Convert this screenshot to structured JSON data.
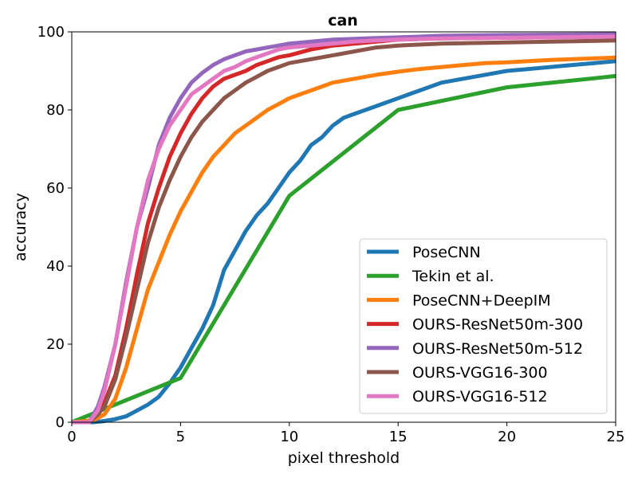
{
  "chart_data": {
    "type": "line",
    "title": "can",
    "xlabel": "pixel threshold",
    "ylabel": "accuracy",
    "xlim": [
      0,
      25
    ],
    "ylim": [
      0,
      100
    ],
    "xticks": [
      "0",
      "5",
      "10",
      "15",
      "20",
      "25"
    ],
    "yticks": [
      "0",
      "20",
      "40",
      "60",
      "80",
      "100"
    ],
    "grid": false,
    "legend_position": "lower-right",
    "series": [
      {
        "name": "PoseCNN",
        "color": "#1f77b4",
        "points": [
          [
            0,
            0
          ],
          [
            1,
            0
          ],
          [
            1.5,
            0.3
          ],
          [
            2,
            0.8
          ],
          [
            2.5,
            1.5
          ],
          [
            3,
            3
          ],
          [
            3.5,
            4.5
          ],
          [
            4,
            6.5
          ],
          [
            4.5,
            10
          ],
          [
            5,
            14
          ],
          [
            5.5,
            19
          ],
          [
            6,
            24
          ],
          [
            6.5,
            30
          ],
          [
            7,
            39
          ],
          [
            7.5,
            44
          ],
          [
            8,
            49
          ],
          [
            8.5,
            53
          ],
          [
            9,
            56
          ],
          [
            9.5,
            60
          ],
          [
            10,
            64
          ],
          [
            10.5,
            67
          ],
          [
            11,
            71
          ],
          [
            11.5,
            73
          ],
          [
            12,
            76
          ],
          [
            12.5,
            78
          ],
          [
            13,
            79
          ],
          [
            13.5,
            80
          ],
          [
            14,
            81
          ],
          [
            14.5,
            82
          ],
          [
            15,
            83
          ],
          [
            15.5,
            84
          ],
          [
            16,
            85
          ],
          [
            17,
            87
          ],
          [
            18,
            88
          ],
          [
            19,
            89
          ],
          [
            20,
            90
          ],
          [
            21,
            90.5
          ],
          [
            22,
            91
          ],
          [
            23,
            91.5
          ],
          [
            24,
            92
          ],
          [
            25,
            92.5
          ]
        ]
      },
      {
        "name": "Tekin et al.",
        "color": "#2ca02c",
        "points": [
          [
            0,
            0
          ],
          [
            5,
            11.3
          ],
          [
            10,
            58
          ],
          [
            15,
            80
          ],
          [
            20,
            85.8
          ],
          [
            25,
            88.7
          ]
        ]
      },
      {
        "name": "PoseCNN+DeepIM",
        "color": "#ff7f0e",
        "points": [
          [
            0,
            0
          ],
          [
            1,
            0.5
          ],
          [
            1.5,
            2
          ],
          [
            2,
            6
          ],
          [
            2.5,
            14
          ],
          [
            3,
            24
          ],
          [
            3.5,
            34
          ],
          [
            4,
            41
          ],
          [
            4.5,
            48
          ],
          [
            5,
            54
          ],
          [
            5.5,
            59
          ],
          [
            6,
            64
          ],
          [
            6.5,
            68
          ],
          [
            7,
            71
          ],
          [
            7.5,
            74
          ],
          [
            8,
            76
          ],
          [
            8.5,
            78
          ],
          [
            9,
            80
          ],
          [
            9.5,
            81.5
          ],
          [
            10,
            83
          ],
          [
            10.5,
            84
          ],
          [
            11,
            85
          ],
          [
            11.5,
            86
          ],
          [
            12,
            87
          ],
          [
            13,
            88
          ],
          [
            14,
            89
          ],
          [
            15,
            89.8
          ],
          [
            16,
            90.5
          ],
          [
            17,
            91
          ],
          [
            18,
            91.5
          ],
          [
            19,
            92
          ],
          [
            20,
            92.2
          ],
          [
            21,
            92.5
          ],
          [
            22,
            92.8
          ],
          [
            23,
            93
          ],
          [
            24,
            93.2
          ],
          [
            25,
            93.4
          ]
        ]
      },
      {
        "name": "OURS-ResNet50m-300",
        "color": "#d62728",
        "points": [
          [
            0,
            0
          ],
          [
            0.8,
            0
          ],
          [
            1.2,
            2
          ],
          [
            1.5,
            5
          ],
          [
            2,
            12
          ],
          [
            2.5,
            24
          ],
          [
            3,
            38
          ],
          [
            3.5,
            51
          ],
          [
            4,
            60
          ],
          [
            4.5,
            68
          ],
          [
            5,
            74
          ],
          [
            5.5,
            79
          ],
          [
            6,
            83
          ],
          [
            6.5,
            86
          ],
          [
            7,
            88
          ],
          [
            7.5,
            89
          ],
          [
            8,
            90
          ],
          [
            8.5,
            91.5
          ],
          [
            9,
            92.5
          ],
          [
            9.5,
            93.5
          ],
          [
            10,
            94
          ],
          [
            11,
            95.5
          ],
          [
            12,
            96.5
          ],
          [
            13,
            97
          ],
          [
            14,
            97.5
          ],
          [
            15,
            98
          ],
          [
            17,
            98.3
          ],
          [
            20,
            98.5
          ],
          [
            25,
            98.8
          ]
        ]
      },
      {
        "name": "OURS-ResNet50m-512",
        "color": "#9467bd",
        "points": [
          [
            0,
            0
          ],
          [
            0.8,
            0
          ],
          [
            1.2,
            4
          ],
          [
            1.5,
            9
          ],
          [
            2,
            20
          ],
          [
            2.5,
            36
          ],
          [
            3,
            50
          ],
          [
            3.5,
            60
          ],
          [
            4,
            71
          ],
          [
            4.5,
            78
          ],
          [
            5,
            83
          ],
          [
            5.5,
            87
          ],
          [
            6,
            89.5
          ],
          [
            6.5,
            91.5
          ],
          [
            7,
            93
          ],
          [
            7.5,
            94
          ],
          [
            8,
            95
          ],
          [
            8.5,
            95.5
          ],
          [
            9,
            96
          ],
          [
            9.5,
            96.5
          ],
          [
            10,
            97
          ],
          [
            11,
            97.5
          ],
          [
            12,
            98
          ],
          [
            13,
            98.2
          ],
          [
            14,
            98.4
          ],
          [
            15,
            98.6
          ],
          [
            17,
            99
          ],
          [
            20,
            99.2
          ],
          [
            25,
            99.4
          ]
        ]
      },
      {
        "name": "OURS-VGG16-300",
        "color": "#8c564b",
        "points": [
          [
            0,
            0
          ],
          [
            0.8,
            0
          ],
          [
            1.2,
            2
          ],
          [
            1.5,
            4
          ],
          [
            2,
            11
          ],
          [
            2.5,
            22
          ],
          [
            3,
            34
          ],
          [
            3.5,
            46
          ],
          [
            4,
            55
          ],
          [
            4.5,
            62
          ],
          [
            5,
            68
          ],
          [
            5.5,
            73
          ],
          [
            6,
            77
          ],
          [
            6.5,
            80
          ],
          [
            7,
            83
          ],
          [
            7.5,
            85
          ],
          [
            8,
            87
          ],
          [
            8.5,
            88.5
          ],
          [
            9,
            90
          ],
          [
            9.5,
            91
          ],
          [
            10,
            92
          ],
          [
            11,
            93
          ],
          [
            12,
            94
          ],
          [
            13,
            95
          ],
          [
            14,
            96
          ],
          [
            15,
            96.5
          ],
          [
            17,
            97
          ],
          [
            20,
            97.3
          ],
          [
            25,
            97.8
          ]
        ]
      },
      {
        "name": "OURS-VGG16-512",
        "color": "#e377c2",
        "points": [
          [
            0,
            0
          ],
          [
            0.8,
            0
          ],
          [
            1.2,
            3
          ],
          [
            1.5,
            8
          ],
          [
            2,
            20
          ],
          [
            2.5,
            35
          ],
          [
            3,
            50
          ],
          [
            3.5,
            62
          ],
          [
            4,
            70
          ],
          [
            4.5,
            76
          ],
          [
            5,
            80
          ],
          [
            5.5,
            84
          ],
          [
            6,
            86
          ],
          [
            6.5,
            88
          ],
          [
            7,
            90
          ],
          [
            7.5,
            91
          ],
          [
            8,
            92.5
          ],
          [
            8.5,
            93.5
          ],
          [
            9,
            94.5
          ],
          [
            9.5,
            95.5
          ],
          [
            10,
            96
          ],
          [
            11,
            96.5
          ],
          [
            12,
            97
          ],
          [
            13,
            97.5
          ],
          [
            14,
            97.8
          ],
          [
            15,
            98
          ],
          [
            17,
            98.3
          ],
          [
            20,
            98.5
          ],
          [
            25,
            98.8
          ]
        ]
      }
    ]
  }
}
